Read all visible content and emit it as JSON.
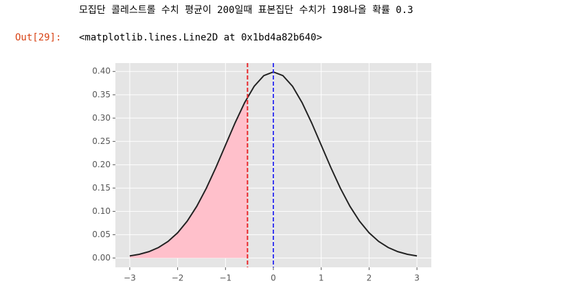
{
  "cell_text": "모집단 콜레스트롤 수치 평균이 200일때 표본집단 수치가 198나올 확률 0.3",
  "prompt": "Out[29]:",
  "output": "<matplotlib.lines.Line2D at 0x1bd4a82b640>",
  "chart_data": {
    "type": "line",
    "xlim": [
      -3.3,
      3.3
    ],
    "ylim": [
      -0.02,
      0.418
    ],
    "xticks": [
      {
        "value": -3,
        "label": "−3"
      },
      {
        "value": -2,
        "label": "−2"
      },
      {
        "value": -1,
        "label": "−1"
      },
      0,
      1,
      2,
      3
    ],
    "yticks": [
      {
        "value": 0,
        "label": "0.00"
      },
      {
        "value": 0.05,
        "label": "0.05"
      },
      {
        "value": 0.1,
        "label": "0.10"
      },
      {
        "value": 0.15,
        "label": "0.15"
      },
      {
        "value": 0.2,
        "label": "0.20"
      },
      {
        "value": 0.25,
        "label": "0.25"
      },
      {
        "value": 0.3,
        "label": "0.30"
      },
      {
        "value": 0.35,
        "label": "0.35"
      },
      {
        "value": 0.4,
        "label": "0.40"
      }
    ],
    "grid": true,
    "series": [
      {
        "color": "#222222",
        "x": [
          -3,
          -2.8,
          -2.6,
          -2.4,
          -2.2,
          -2,
          -1.8,
          -1.6,
          -1.4,
          -1.2,
          -1,
          -0.8,
          -0.6,
          -0.4,
          -0.2,
          0,
          0.2,
          0.4,
          0.6,
          0.8,
          1,
          1.2,
          1.4,
          1.6,
          1.8,
          2,
          2.2,
          2.4,
          2.6,
          2.8,
          3
        ],
        "values": [
          0.0044,
          0.0079,
          0.0136,
          0.0224,
          0.0355,
          0.054,
          0.079,
          0.1109,
          0.1497,
          0.1942,
          0.242,
          0.2897,
          0.3332,
          0.3683,
          0.391,
          0.3989,
          0.391,
          0.3683,
          0.3332,
          0.2897,
          0.242,
          0.1942,
          0.1497,
          0.1109,
          0.079,
          0.054,
          0.0355,
          0.0224,
          0.0136,
          0.0079,
          0.0044
        ]
      }
    ],
    "fill": {
      "color": "#ffc0cb",
      "x": [
        -3,
        -2.8,
        -2.6,
        -2.4,
        -2.2,
        -2,
        -1.8,
        -1.6,
        -1.4,
        -1.2,
        -1,
        -0.8,
        -0.6,
        -0.54
      ],
      "values": [
        0.0044,
        0.0079,
        0.0136,
        0.0224,
        0.0355,
        0.054,
        0.079,
        0.1109,
        0.1497,
        0.1942,
        0.242,
        0.2897,
        0.3332,
        0.3448
      ]
    },
    "vlines": [
      {
        "x": -0.54,
        "color": "#e8262a"
      },
      {
        "x": 0,
        "color": "#3a3af0"
      }
    ]
  }
}
